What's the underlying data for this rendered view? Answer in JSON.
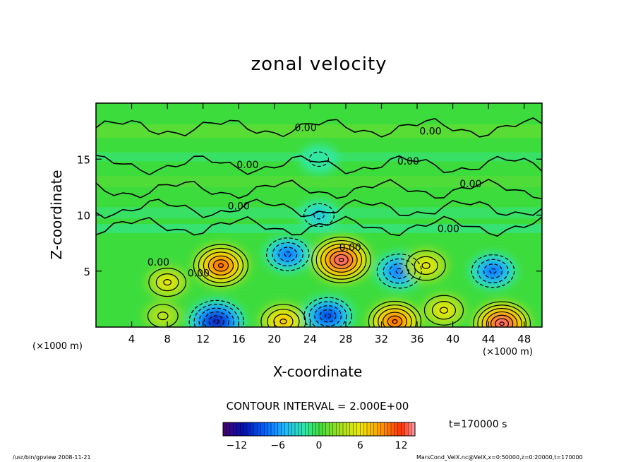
{
  "title": "zonal velocity",
  "xlabel": "X-coordinate",
  "ylabel": "Z-coordinate",
  "x_unit": "(×1000 m)",
  "x_unit_right": "(×1000 m)",
  "contour_interval": "CONTOUR INTERVAL = 2.000E+00",
  "time_label": "t=170000 s",
  "footer_left": "/usr/bin/gpview   2008-11-21",
  "footer_right": "MarsCond_VelX.nc@VelX,x=0:50000,z=0:20000,t=170000",
  "chart_data": {
    "type": "heatmap",
    "title": "zonal velocity",
    "xlabel": "X-coordinate",
    "ylabel": "Z-coordinate",
    "x_units": "×1000 m",
    "xlim": [
      0,
      50
    ],
    "ylim": [
      0,
      20
    ],
    "x_ticks": [
      4,
      8,
      12,
      16,
      20,
      24,
      28,
      32,
      36,
      40,
      44,
      48
    ],
    "y_ticks": [
      5,
      10,
      15
    ],
    "contour_interval": 2.0,
    "contour_labels": [
      "0.00"
    ],
    "colorbar": {
      "range": [
        -14,
        14
      ],
      "ticks": [
        -12,
        -6,
        0,
        6,
        12
      ]
    },
    "features": [
      {
        "x": 14.0,
        "z": 5.5,
        "value": 12
      },
      {
        "x": 27.5,
        "z": 6.0,
        "value": 14
      },
      {
        "x": 8.0,
        "z": 4.0,
        "value": 5
      },
      {
        "x": 21.5,
        "z": 6.5,
        "value": -7
      },
      {
        "x": 34.0,
        "z": 5.0,
        "value": -8
      },
      {
        "x": 44.5,
        "z": 5.0,
        "value": -7
      },
      {
        "x": 37.0,
        "z": 5.5,
        "value": 6
      },
      {
        "x": 39.0,
        "z": 1.5,
        "value": 6
      },
      {
        "x": 13.5,
        "z": 0.5,
        "value": -12
      },
      {
        "x": 21.0,
        "z": 0.5,
        "value": 8
      },
      {
        "x": 26.0,
        "z": 1.0,
        "value": -9
      },
      {
        "x": 33.5,
        "z": 0.5,
        "value": 11
      },
      {
        "x": 45.5,
        "z": 0.3,
        "value": 13
      },
      {
        "x": 7.5,
        "z": 1.0,
        "value": 3
      },
      {
        "x": 25.0,
        "z": 10.0,
        "value": -3
      },
      {
        "x": 25.0,
        "z": 15.0,
        "value": -2
      }
    ],
    "contour_label_positions": [
      {
        "x": 23.5,
        "z": 17.5
      },
      {
        "x": 37.5,
        "z": 17.2
      },
      {
        "x": 17.0,
        "z": 14.2
      },
      {
        "x": 35.0,
        "z": 14.5
      },
      {
        "x": 42.0,
        "z": 12.5
      },
      {
        "x": 16.0,
        "z": 10.5
      },
      {
        "x": 39.5,
        "z": 8.5
      },
      {
        "x": 28.5,
        "z": 6.8
      },
      {
        "x": 7.0,
        "z": 5.5
      },
      {
        "x": 11.5,
        "z": 4.5
      }
    ]
  },
  "colors": {
    "background_field": "#3ddc3d",
    "frame": "#000000"
  }
}
